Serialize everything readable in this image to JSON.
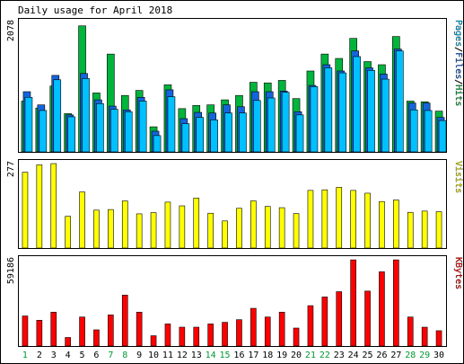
{
  "title": "Daily usage for April 2018",
  "colors": {
    "background": "#ffffff",
    "frame": "#000000",
    "hits": "#00b43c",
    "files": "#1464dc",
    "pages": "#00c0ff",
    "visits": "#ffff00",
    "kbytes": "#ff0000",
    "weekday_label": "#000000",
    "weekend_label": "#009933"
  },
  "chart_data": [
    {
      "type": "bar",
      "name": "hits-files-pages",
      "max_label": "2078",
      "legend": [
        {
          "text": "Pages",
          "color": "#00c0ff"
        },
        {
          "text": "/",
          "color": "#000000"
        },
        {
          "text": "Files",
          "color": "#1464dc"
        },
        {
          "text": "/",
          "color": "#000000"
        },
        {
          "text": "Hits",
          "color": "#00b43c"
        }
      ],
      "ylim": [
        0,
        2078
      ],
      "categories": [
        "1",
        "2",
        "3",
        "4",
        "5",
        "6",
        "7",
        "8",
        "9",
        "10",
        "11",
        "12",
        "13",
        "14",
        "15",
        "16",
        "17",
        "18",
        "19",
        "20",
        "21",
        "22",
        "23",
        "24",
        "25",
        "26",
        "27",
        "28",
        "29",
        "30"
      ],
      "series": [
        {
          "name": "Hits",
          "color": "#00b43c",
          "values": [
            810,
            700,
            1050,
            610,
            2010,
            940,
            1560,
            900,
            980,
            400,
            1070,
            690,
            740,
            750,
            830,
            900,
            1110,
            1100,
            1140,
            850,
            1290,
            1560,
            1490,
            1810,
            1440,
            1390,
            1840,
            810,
            800,
            650
          ]
        },
        {
          "name": "Files",
          "color": "#1464dc",
          "values": [
            960,
            750,
            1220,
            590,
            1250,
            830,
            730,
            670,
            870,
            330,
            990,
            530,
            630,
            620,
            750,
            720,
            960,
            960,
            970,
            640,
            1060,
            1390,
            1290,
            1610,
            1340,
            1240,
            1640,
            780,
            780,
            550
          ]
        },
        {
          "name": "Pages",
          "color": "#00c0ff",
          "values": [
            870,
            660,
            1150,
            560,
            1170,
            770,
            680,
            640,
            810,
            260,
            880,
            450,
            550,
            510,
            620,
            620,
            820,
            860,
            950,
            590,
            1040,
            1340,
            1260,
            1520,
            1300,
            1160,
            1610,
            670,
            660,
            500
          ]
        }
      ]
    },
    {
      "type": "bar",
      "name": "visits",
      "max_label": "277",
      "legend": [
        {
          "text": "Visits",
          "color": "#ffff00"
        }
      ],
      "ylim": [
        0,
        277
      ],
      "categories": [
        "1",
        "2",
        "3",
        "4",
        "5",
        "6",
        "7",
        "8",
        "9",
        "10",
        "11",
        "12",
        "13",
        "14",
        "15",
        "16",
        "17",
        "18",
        "19",
        "20",
        "21",
        "22",
        "23",
        "24",
        "25",
        "26",
        "27",
        "28",
        "29",
        "30"
      ],
      "series": [
        {
          "name": "Visits",
          "color": "#ffff00",
          "values": [
            246,
            270,
            274,
            103,
            182,
            123,
            125,
            153,
            111,
            115,
            149,
            137,
            162,
            113,
            88,
            129,
            153,
            135,
            131,
            112,
            187,
            189,
            197,
            187,
            178,
            151,
            156,
            116,
            120,
            118
          ]
        }
      ]
    },
    {
      "type": "bar",
      "name": "kbytes",
      "max_label": "59186",
      "legend": [
        {
          "text": "KBytes",
          "color": "#ff0000"
        }
      ],
      "ylim": [
        0,
        59186
      ],
      "categories": [
        "1",
        "2",
        "3",
        "4",
        "5",
        "6",
        "7",
        "8",
        "9",
        "10",
        "11",
        "12",
        "13",
        "14",
        "15",
        "16",
        "17",
        "18",
        "19",
        "20",
        "21",
        "22",
        "23",
        "24",
        "25",
        "26",
        "27",
        "28",
        "29",
        "30"
      ],
      "series": [
        {
          "name": "KBytes",
          "color": "#ff0000",
          "values": [
            20400,
            17500,
            23000,
            5800,
            19700,
            11000,
            21100,
            34600,
            23000,
            7000,
            15000,
            12800,
            12800,
            15000,
            16100,
            17900,
            25600,
            19700,
            23000,
            12200,
            27400,
            33300,
            36900,
            58500,
            37300,
            50400,
            58500,
            19700,
            12800,
            10400
          ]
        }
      ]
    }
  ],
  "x_labels": {
    "weekend_days": [
      "1",
      "7",
      "8",
      "14",
      "15",
      "21",
      "22",
      "28",
      "29"
    ]
  }
}
